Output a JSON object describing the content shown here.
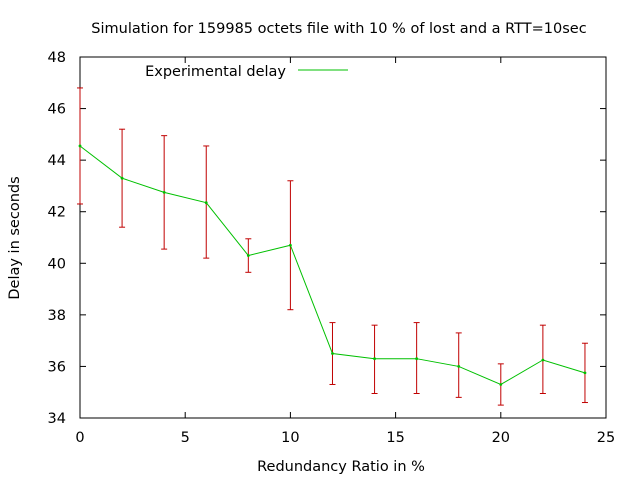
{
  "chart_data": {
    "type": "line",
    "title": "Simulation for 159985 octets file with 10 % of lost and a RTT=10sec",
    "xlabel": "Redundancy Ratio in %",
    "ylabel": "Delay in seconds",
    "xlim": [
      0,
      25
    ],
    "ylim": [
      34,
      48
    ],
    "xticks": [
      0,
      5,
      10,
      15,
      20,
      25
    ],
    "yticks": [
      34,
      36,
      38,
      40,
      42,
      44,
      46,
      48
    ],
    "grid": false,
    "legend_position": "top-left",
    "series": [
      {
        "name": "Experimental delay",
        "color": "#00c000",
        "error_color": "#c00000",
        "points": [
          {
            "x": 0,
            "y": 44.55,
            "low": 42.3,
            "high": 46.8
          },
          {
            "x": 2,
            "y": 43.3,
            "low": 41.4,
            "high": 45.2
          },
          {
            "x": 4,
            "y": 42.75,
            "low": 40.55,
            "high": 44.95
          },
          {
            "x": 6,
            "y": 42.35,
            "low": 40.2,
            "high": 44.55
          },
          {
            "x": 8,
            "y": 40.3,
            "low": 39.65,
            "high": 40.95
          },
          {
            "x": 10,
            "y": 40.7,
            "low": 38.2,
            "high": 43.2
          },
          {
            "x": 12,
            "y": 36.5,
            "low": 35.3,
            "high": 37.7
          },
          {
            "x": 14,
            "y": 36.3,
            "low": 34.95,
            "high": 37.6
          },
          {
            "x": 16,
            "y": 36.3,
            "low": 34.95,
            "high": 37.7
          },
          {
            "x": 18,
            "y": 36.0,
            "low": 34.8,
            "high": 37.3
          },
          {
            "x": 20,
            "y": 35.3,
            "low": 34.5,
            "high": 36.1
          },
          {
            "x": 22,
            "y": 36.25,
            "low": 34.95,
            "high": 37.6
          },
          {
            "x": 24,
            "y": 35.75,
            "low": 34.6,
            "high": 36.9
          }
        ]
      }
    ]
  }
}
